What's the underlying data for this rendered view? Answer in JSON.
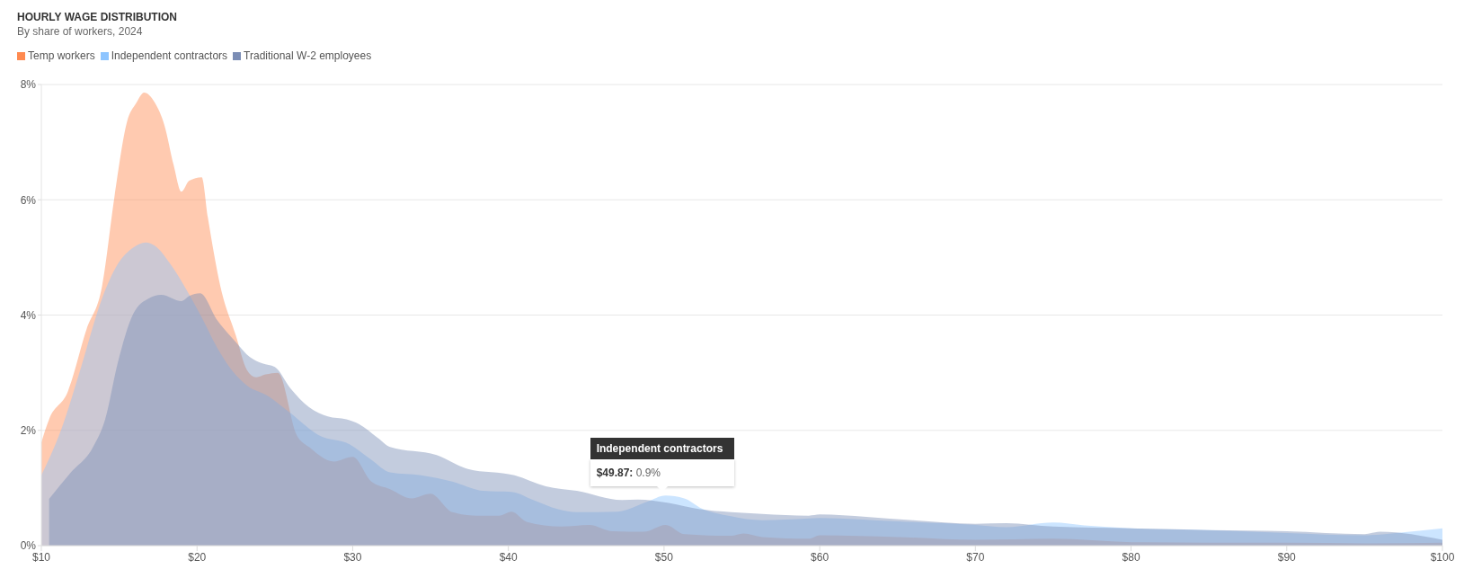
{
  "chart_data": {
    "type": "area",
    "title": "HOURLY WAGE DISTRIBUTION",
    "subtitle": "By share of workers, 2024",
    "series": [
      {
        "name": "Temp workers",
        "color": "#ff8a50",
        "x": [
          10,
          10.5,
          11.7,
          12.9,
          13.9,
          14.7,
          15.5,
          16.1,
          16.6,
          17.3,
          17.9,
          18.5,
          19,
          19.5,
          20.3,
          20.7,
          21.5,
          22.5,
          23.2,
          23.8,
          24.4,
          25.2,
          26.4,
          27.2,
          28.8,
          30,
          31.2,
          32.4,
          33.8,
          35,
          36.4,
          38,
          39.4,
          40.2,
          41.2,
          43.4,
          45.2,
          46.7,
          48.7,
          50.1,
          51.3,
          54.3,
          55.1,
          56.3,
          59.3,
          60,
          65,
          70,
          75,
          80,
          85,
          90,
          95,
          100
        ],
        "values": [
          1.79,
          2.19,
          2.67,
          3.75,
          4.5,
          6.06,
          7.35,
          7.68,
          7.86,
          7.68,
          7.3,
          6.6,
          6.14,
          6.33,
          6.39,
          5.69,
          4.5,
          3.64,
          3.05,
          2.92,
          2.97,
          3,
          1.92,
          1.71,
          1.46,
          1.54,
          1.11,
          0.98,
          0.82,
          0.9,
          0.58,
          0.52,
          0.52,
          0.59,
          0.41,
          0.33,
          0.36,
          0.25,
          0.24,
          0.36,
          0.2,
          0.17,
          0.21,
          0.15,
          0.12,
          0.18,
          0.15,
          0.1,
          0.12,
          0.06,
          0.05,
          0.05,
          0.04,
          0.05
        ]
      },
      {
        "name": "Independent contractors",
        "color": "#8ec5ff",
        "x": [
          10,
          11.3,
          12.5,
          13.9,
          14.9,
          15.9,
          16.7,
          17.3,
          18.3,
          19.3,
          20.3,
          21.3,
          22.3,
          23.2,
          24.6,
          26,
          27.8,
          29.8,
          31.2,
          32.4,
          34.4,
          36.4,
          38.4,
          40.2,
          41.6,
          43.2,
          44.4,
          47,
          48.9,
          50.1,
          51.3,
          52.3,
          54.3,
          56.3,
          59.3,
          60,
          65,
          70,
          72,
          75,
          77,
          80,
          85,
          90,
          95,
          97,
          100
        ],
        "values": [
          1.22,
          2.03,
          3.05,
          4.29,
          4.88,
          5.17,
          5.26,
          5.2,
          4.88,
          4.45,
          3.96,
          3.43,
          3.02,
          2.78,
          2.59,
          2.3,
          1.92,
          1.76,
          1.49,
          1.27,
          1.22,
          1.11,
          0.95,
          0.93,
          0.79,
          0.63,
          0.58,
          0.59,
          0.76,
          0.87,
          0.82,
          0.66,
          0.51,
          0.44,
          0.47,
          0.48,
          0.42,
          0.36,
          0.32,
          0.4,
          0.35,
          0.3,
          0.27,
          0.22,
          0.18,
          0.22,
          0.3
        ]
      },
      {
        "name": "Traditional W-2 employees",
        "color": "#7b8db5",
        "x": [
          10.5,
          11.9,
          13.3,
          14.1,
          14.9,
          15.9,
          16.9,
          17.7,
          19,
          19.5,
          20.2,
          21.3,
          22.5,
          23.4,
          24.2,
          25,
          26,
          27.2,
          28.4,
          29.6,
          30.4,
          31.6,
          32.4,
          35.4,
          37.4,
          40.4,
          42.4,
          44.4,
          47.3,
          48.3,
          50.3,
          52.3,
          54.3,
          56.3,
          59.3,
          60,
          63,
          66,
          70,
          72,
          75,
          80,
          85,
          90,
          95,
          96,
          100
        ],
        "values": [
          0.81,
          1.27,
          1.7,
          2.19,
          3.16,
          4.02,
          4.29,
          4.35,
          4.24,
          4.33,
          4.38,
          3.91,
          3.53,
          3.27,
          3.16,
          3.1,
          2.73,
          2.4,
          2.24,
          2.19,
          2.11,
          1.87,
          1.71,
          1.57,
          1.33,
          1.22,
          1.03,
          0.95,
          0.79,
          0.8,
          0.74,
          0.63,
          0.58,
          0.55,
          0.52,
          0.54,
          0.5,
          0.44,
          0.38,
          0.39,
          0.33,
          0.3,
          0.27,
          0.25,
          0.2,
          0.24,
          0.1
        ]
      }
    ],
    "xlim": [
      10,
      100
    ],
    "xticks": [
      {
        "value": 10,
        "label": "$10"
      },
      {
        "value": 20,
        "label": "$20"
      },
      {
        "value": 30,
        "label": "$30"
      },
      {
        "value": 40,
        "label": "$40"
      },
      {
        "value": 50,
        "label": "$50"
      },
      {
        "value": 60,
        "label": "$60"
      },
      {
        "value": 70,
        "label": "$70"
      },
      {
        "value": 80,
        "label": "$80"
      },
      {
        "value": 90,
        "label": "$90"
      },
      {
        "value": 100,
        "label": "$100"
      }
    ],
    "ylim": [
      0,
      8
    ],
    "yticks": [
      {
        "value": 0,
        "label": "0%"
      },
      {
        "value": 2,
        "label": "2%"
      },
      {
        "value": 4,
        "label": "4%"
      },
      {
        "value": 6,
        "label": "6%"
      },
      {
        "value": 8,
        "label": "8%"
      }
    ],
    "grid": "y",
    "legend": "top left",
    "annotations": [
      "Independent contractors",
      {
        "text": "$49.87: 0.9%",
        "x": 49.87,
        "y": 0.9
      }
    ]
  }
}
